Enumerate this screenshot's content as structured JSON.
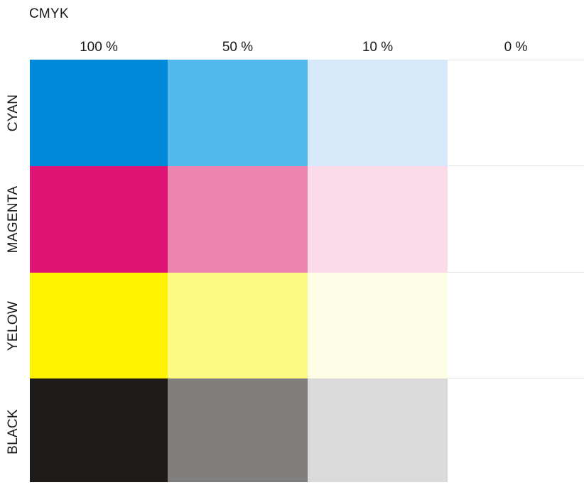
{
  "title": "CMYK",
  "columns": [
    "100 %",
    "50 %",
    "10 %",
    "0 %"
  ],
  "rows": [
    {
      "label": "CYAN",
      "colors": [
        "#0089d9",
        "#52b9ef",
        "#d5e9fa",
        "#ffffff"
      ]
    },
    {
      "label": "MAGENTA",
      "colors": [
        "#df1576",
        "#ec86b1",
        "#fbdbe9",
        "#ffffff"
      ]
    },
    {
      "label": "YELOW",
      "colors": [
        "#fff200",
        "#fcfa82",
        "#fefde6",
        "#ffffff"
      ]
    },
    {
      "label": "BLACK",
      "colors": [
        "#1e1b19",
        "#807f7d",
        "#dadada",
        "#ffffff"
      ]
    }
  ]
}
